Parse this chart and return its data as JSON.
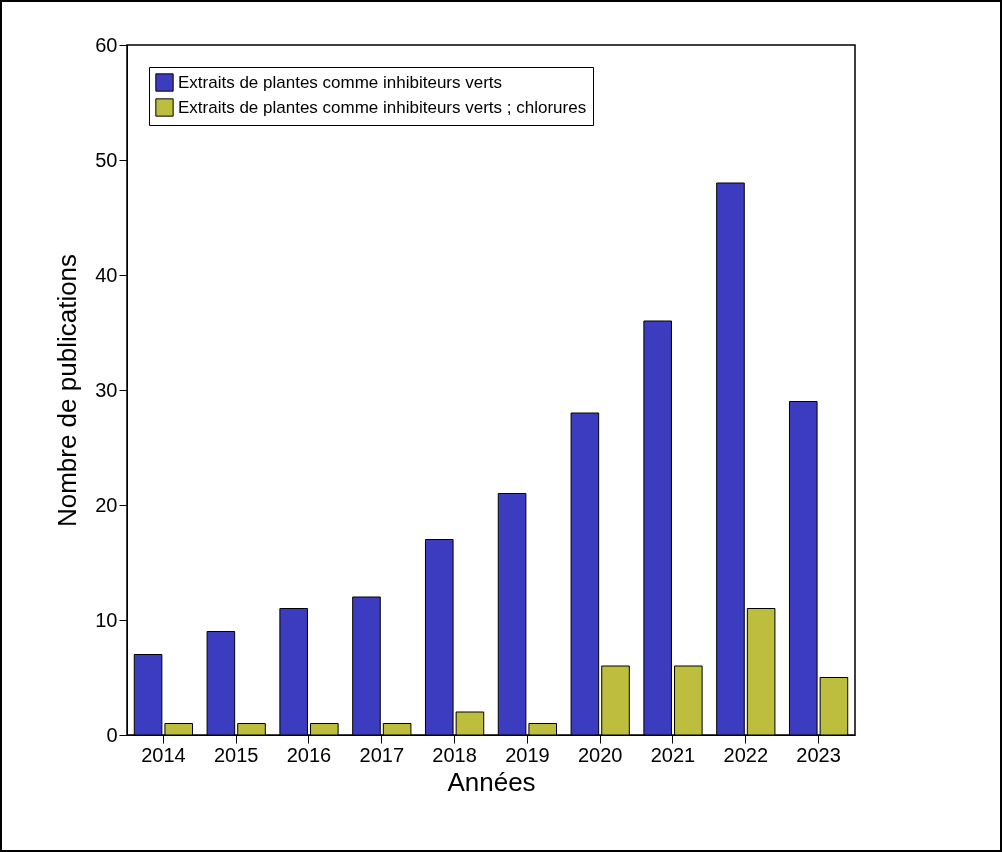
{
  "chart_data": {
    "type": "bar",
    "xlabel": "Années",
    "ylabel": "Nombre de publications",
    "categories": [
      "2014",
      "2015",
      "2016",
      "2017",
      "2018",
      "2019",
      "2020",
      "2021",
      "2022",
      "2023"
    ],
    "series": [
      {
        "name": "Extraits de plantes comme inhibiteurs verts",
        "color": "#3c3cc0",
        "values": [
          7,
          9,
          11,
          12,
          17,
          21,
          28,
          36,
          48,
          29
        ]
      },
      {
        "name": "Extraits de plantes comme inhibiteurs verts ; chlorures",
        "color": "#bdbd3e",
        "values": [
          1,
          1,
          1,
          1,
          2,
          1,
          6,
          6,
          11,
          5
        ]
      }
    ],
    "ylim": [
      0,
      60
    ],
    "yticks": [
      0,
      10,
      20,
      30,
      40,
      50,
      60
    ],
    "grid": false,
    "legend": "top left"
  }
}
